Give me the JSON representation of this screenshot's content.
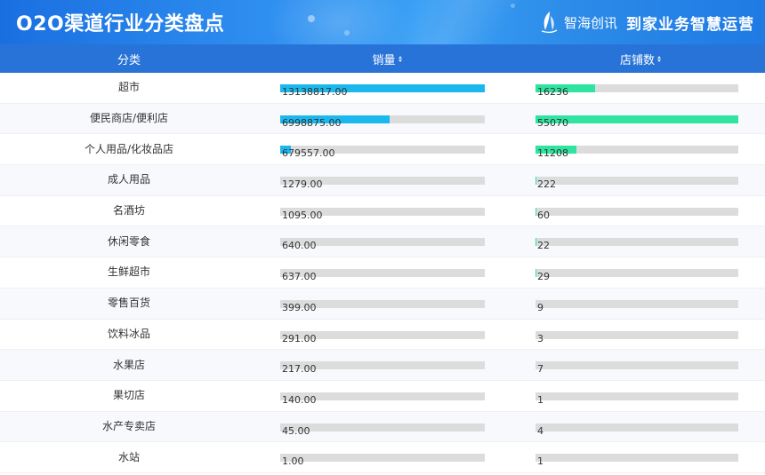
{
  "header": {
    "title": "O2O渠道行业分类盘点",
    "brand_name": "智海创讯",
    "brand_slogan": "到家业务智慧运营",
    "brand_icon": "sail-logo-icon"
  },
  "table": {
    "columns": [
      {
        "label": "分类",
        "sortable": false
      },
      {
        "label": "销量",
        "sortable": true
      },
      {
        "label": "店铺数",
        "sortable": true
      }
    ],
    "colors": {
      "sales_bar": "#1bb8ee",
      "stores_bar": "#2fe3a0",
      "track": "#dcdcdc",
      "header": "#2873d8"
    },
    "rows": [
      {
        "category": "超市",
        "sales": "13138817.00",
        "stores": "16236"
      },
      {
        "category": "便民商店/便利店",
        "sales": "6998875.00",
        "stores": "55070"
      },
      {
        "category": "个人用品/化妆品店",
        "sales": "679557.00",
        "stores": "11208"
      },
      {
        "category": "成人用品",
        "sales": "1279.00",
        "stores": "222"
      },
      {
        "category": "名酒坊",
        "sales": "1095.00",
        "stores": "60"
      },
      {
        "category": "休闲零食",
        "sales": "640.00",
        "stores": "22"
      },
      {
        "category": "生鲜超市",
        "sales": "637.00",
        "stores": "29"
      },
      {
        "category": "零售百货",
        "sales": "399.00",
        "stores": "9"
      },
      {
        "category": "饮料冰品",
        "sales": "291.00",
        "stores": "3"
      },
      {
        "category": "水果店",
        "sales": "217.00",
        "stores": "7"
      },
      {
        "category": "果切店",
        "sales": "140.00",
        "stores": "1"
      },
      {
        "category": "水产专卖店",
        "sales": "45.00",
        "stores": "4"
      },
      {
        "category": "水站",
        "sales": "1.00",
        "stores": "1"
      }
    ]
  }
}
